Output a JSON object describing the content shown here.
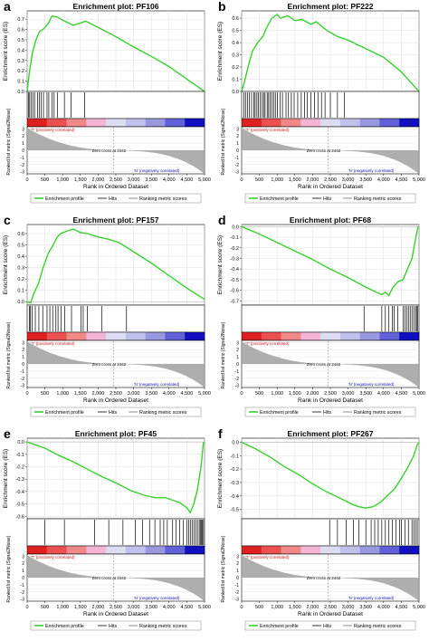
{
  "chart_data": [
    {
      "panel": "a",
      "type": "line",
      "title": "Enrichment plot: PF106",
      "direction": "positive",
      "es_ticks": [
        "0.0",
        "0.1",
        "0.2",
        "0.3",
        "0.4",
        "0.5",
        "0.6",
        "0.7"
      ],
      "es_lim": [
        0.0,
        0.78
      ],
      "es_points": [
        [
          0,
          0
        ],
        [
          60,
          0.18
        ],
        [
          150,
          0.38
        ],
        [
          250,
          0.5
        ],
        [
          350,
          0.58
        ],
        [
          450,
          0.6
        ],
        [
          600,
          0.66
        ],
        [
          700,
          0.73
        ],
        [
          850,
          0.72
        ],
        [
          1000,
          0.69
        ],
        [
          1300,
          0.64
        ],
        [
          1650,
          0.68
        ],
        [
          2000,
          0.62
        ],
        [
          2500,
          0.53
        ],
        [
          3000,
          0.43
        ],
        [
          3500,
          0.34
        ],
        [
          4000,
          0.24
        ],
        [
          4500,
          0.12
        ],
        [
          5000,
          0.0
        ]
      ],
      "hits": [
        40,
        70,
        110,
        160,
        210,
        290,
        340,
        400,
        460,
        560,
        610,
        700,
        760,
        850,
        1050,
        1240,
        1620
      ]
    },
    {
      "panel": "b",
      "type": "line",
      "title": "Enrichment plot: PF222",
      "direction": "positive",
      "es_ticks": [
        "0.0",
        "0.1",
        "0.2",
        "0.3",
        "0.4",
        "0.5",
        "0.6"
      ],
      "es_lim": [
        0.0,
        0.66
      ],
      "es_points": [
        [
          0,
          0
        ],
        [
          80,
          0.08
        ],
        [
          200,
          0.22
        ],
        [
          300,
          0.33
        ],
        [
          450,
          0.4
        ],
        [
          600,
          0.45
        ],
        [
          700,
          0.52
        ],
        [
          850,
          0.6
        ],
        [
          1000,
          0.63
        ],
        [
          1100,
          0.6
        ],
        [
          1300,
          0.62
        ],
        [
          1500,
          0.58
        ],
        [
          1700,
          0.59
        ],
        [
          1950,
          0.55
        ],
        [
          2100,
          0.57
        ],
        [
          2400,
          0.5
        ],
        [
          2700,
          0.45
        ],
        [
          3000,
          0.42
        ],
        [
          3500,
          0.35
        ],
        [
          4000,
          0.28
        ],
        [
          4500,
          0.16
        ],
        [
          5000,
          0.0
        ]
      ],
      "hits": [
        60,
        110,
        170,
        220,
        280,
        340,
        380,
        430,
        470,
        520,
        580,
        620,
        660,
        720,
        760,
        800,
        850,
        900,
        950,
        1010,
        1080,
        1150,
        1250,
        1320,
        1400,
        1480,
        1580,
        1680,
        1770,
        1850,
        1950,
        2050,
        2150,
        2250,
        2350,
        2500,
        2700,
        2900
      ]
    },
    {
      "panel": "c",
      "type": "line",
      "title": "Enrichment plot: PF157",
      "direction": "positive",
      "es_ticks": [
        "0.0",
        "0.1",
        "0.2",
        "0.3",
        "0.4",
        "0.5",
        "0.6"
      ],
      "es_lim": [
        -0.03,
        0.68
      ],
      "es_points": [
        [
          0,
          0
        ],
        [
          100,
          -0.01
        ],
        [
          200,
          0.08
        ],
        [
          320,
          0.16
        ],
        [
          450,
          0.3
        ],
        [
          600,
          0.43
        ],
        [
          700,
          0.48
        ],
        [
          850,
          0.57
        ],
        [
          950,
          0.6
        ],
        [
          1100,
          0.62
        ],
        [
          1300,
          0.64
        ],
        [
          1500,
          0.61
        ],
        [
          1700,
          0.6
        ],
        [
          2000,
          0.57
        ],
        [
          2300,
          0.55
        ],
        [
          2600,
          0.52
        ],
        [
          3000,
          0.44
        ],
        [
          3500,
          0.34
        ],
        [
          4000,
          0.23
        ],
        [
          4500,
          0.12
        ],
        [
          5000,
          0.02
        ]
      ],
      "hits": [
        60,
        90,
        140,
        230,
        330,
        440,
        560,
        640,
        720,
        810,
        870,
        960,
        1060,
        1250,
        1520,
        1580,
        1700,
        2100,
        2800
      ]
    },
    {
      "panel": "d",
      "type": "line",
      "title": "Enrichment plot: PF68",
      "direction": "negative",
      "es_ticks": [
        "0.0",
        "-0.1",
        "-0.2",
        "-0.3",
        "-0.4",
        "-0.5",
        "-0.6",
        "-0.7"
      ],
      "es_lim": [
        -0.74,
        0.02
      ],
      "es_points": [
        [
          0,
          0
        ],
        [
          500,
          -0.07
        ],
        [
          1000,
          -0.15
        ],
        [
          1500,
          -0.23
        ],
        [
          2000,
          -0.31
        ],
        [
          2500,
          -0.4
        ],
        [
          3000,
          -0.48
        ],
        [
          3500,
          -0.57
        ],
        [
          3800,
          -0.62
        ],
        [
          3950,
          -0.64
        ],
        [
          4050,
          -0.62
        ],
        [
          4150,
          -0.65
        ],
        [
          4250,
          -0.58
        ],
        [
          4400,
          -0.52
        ],
        [
          4550,
          -0.5
        ],
        [
          4650,
          -0.42
        ],
        [
          4800,
          -0.3
        ],
        [
          4900,
          -0.12
        ],
        [
          4970,
          0.0
        ]
      ],
      "hits": [
        3450,
        3950,
        4050,
        4150,
        4250,
        4300,
        4400,
        4550,
        4600,
        4650,
        4700,
        4750,
        4800,
        4850,
        4900,
        4930,
        4960
      ]
    },
    {
      "panel": "e",
      "type": "line",
      "title": "Enrichment plot: PF45",
      "direction": "negative",
      "es_ticks": [
        "0.0",
        "-0.1",
        "-0.2",
        "-0.3",
        "-0.4",
        "-0.5",
        "-0.6"
      ],
      "es_lim": [
        -0.62,
        0.03
      ],
      "es_points": [
        [
          0,
          0
        ],
        [
          200,
          -0.02
        ],
        [
          500,
          -0.05
        ],
        [
          900,
          -0.11
        ],
        [
          1300,
          -0.16
        ],
        [
          1700,
          -0.22
        ],
        [
          2100,
          -0.28
        ],
        [
          2500,
          -0.33
        ],
        [
          2900,
          -0.39
        ],
        [
          3300,
          -0.43
        ],
        [
          3600,
          -0.45
        ],
        [
          3900,
          -0.45
        ],
        [
          4100,
          -0.47
        ],
        [
          4300,
          -0.49
        ],
        [
          4500,
          -0.53
        ],
        [
          4600,
          -0.57
        ],
        [
          4700,
          -0.5
        ],
        [
          4800,
          -0.38
        ],
        [
          4900,
          -0.2
        ],
        [
          4970,
          0.0
        ]
      ],
      "hits": [
        500,
        1050,
        1900,
        2300,
        2700,
        3050,
        3250,
        3450,
        3600,
        3750,
        3850,
        3950,
        4100,
        4200,
        4300,
        4400,
        4500,
        4550,
        4600,
        4650,
        4700,
        4750,
        4800,
        4850,
        4880,
        4910,
        4940,
        4970
      ]
    },
    {
      "panel": "f",
      "type": "line",
      "title": "Enrichment plot: PF267",
      "direction": "negative",
      "es_ticks": [
        "0.0",
        "-0.1",
        "-0.2",
        "-0.3",
        "-0.4",
        "-0.5"
      ],
      "es_lim": [
        -0.57,
        0.03
      ],
      "es_points": [
        [
          0,
          0
        ],
        [
          400,
          -0.05
        ],
        [
          800,
          -0.11
        ],
        [
          1200,
          -0.18
        ],
        [
          1600,
          -0.24
        ],
        [
          2000,
          -0.31
        ],
        [
          2400,
          -0.37
        ],
        [
          2800,
          -0.42
        ],
        [
          3100,
          -0.46
        ],
        [
          3300,
          -0.48
        ],
        [
          3500,
          -0.49
        ],
        [
          3700,
          -0.48
        ],
        [
          3900,
          -0.45
        ],
        [
          4100,
          -0.4
        ],
        [
          4300,
          -0.35
        ],
        [
          4500,
          -0.27
        ],
        [
          4700,
          -0.18
        ],
        [
          4850,
          -0.1
        ],
        [
          4950,
          -0.02
        ],
        [
          5000,
          0.0
        ]
      ],
      "hits": [
        2480,
        2700,
        2950,
        3150,
        3300,
        3500,
        3650,
        3750,
        3850,
        3950,
        4050,
        4150,
        4250,
        4350,
        4450,
        4500,
        4600,
        4700,
        4800,
        4850,
        4900,
        4950
      ]
    }
  ],
  "common": {
    "es_ylabel": "Enrichment score (ES)",
    "metric_ylabel": "Ranked list metric (Signal2Noise)",
    "metric_ticks": [
      "3",
      "2",
      "1",
      "0",
      "-1",
      "-2",
      "-3"
    ],
    "xlabel": "Rank in Ordered Dataset",
    "x_ticks": [
      "0",
      "500",
      "1,000",
      "1,500",
      "2,000",
      "2,500",
      "3,000",
      "3,500",
      "4,000",
      "4,500",
      "5,000"
    ],
    "x_lim": [
      0,
      5000
    ],
    "pos_label": "'T' (positively correlated)",
    "neg_label": "'N' (negatively correlated)",
    "zero_cross_label": "Zero cross at 2442",
    "zero_cross": 2442,
    "legend": [
      "Enrichment profile",
      "Hits",
      "Ranking metric scores"
    ],
    "colors": {
      "profile": "#37d12e",
      "hits": "#000000",
      "metric": "#a0a0a0"
    }
  },
  "panel_letters": [
    "a",
    "b",
    "c",
    "d",
    "e",
    "f"
  ]
}
